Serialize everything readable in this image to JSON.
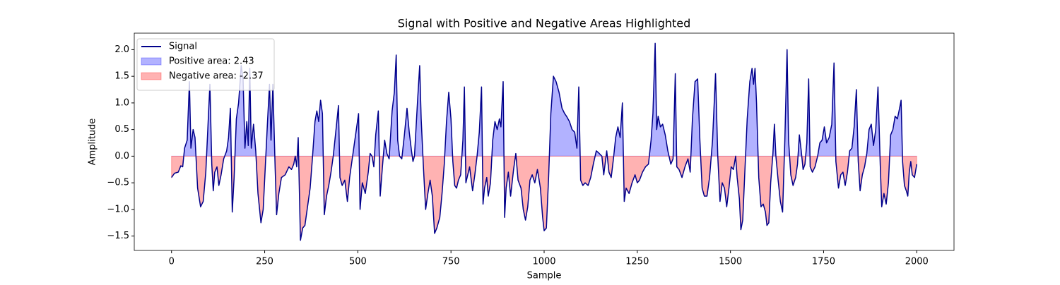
{
  "chart_data": {
    "type": "line",
    "title": "Signal with Positive and Negative Areas Highlighted",
    "x_label": "Sample",
    "y_label": "Amplitude",
    "x": [
      0,
      8,
      18,
      25,
      30,
      35,
      42,
      48,
      52,
      58,
      63,
      70,
      78,
      85,
      92,
      98,
      103,
      108,
      112,
      116,
      122,
      127,
      133,
      140,
      148,
      153,
      158,
      163,
      168,
      174,
      180,
      187,
      192,
      197,
      202,
      206,
      210,
      214,
      220,
      226,
      232,
      240,
      246,
      252,
      258,
      263,
      267,
      272,
      278,
      282,
      288,
      295,
      305,
      315,
      322,
      328,
      332,
      336,
      340,
      346,
      352,
      358,
      365,
      372,
      378,
      385,
      390,
      395,
      400,
      405,
      410,
      416,
      422,
      428,
      434,
      440,
      448,
      452,
      458,
      465,
      472,
      478,
      484,
      490,
      497,
      502,
      506,
      512,
      520,
      528,
      533,
      538,
      543,
      548,
      555,
      560,
      566,
      572,
      578,
      584,
      592,
      598,
      603,
      607,
      612,
      618,
      625,
      632,
      638,
      644,
      648,
      652,
      660,
      666,
      670,
      676,
      682,
      688,
      694,
      700,
      706,
      712,
      720,
      726,
      732,
      738,
      744,
      750,
      755,
      760,
      765,
      770,
      776,
      782,
      786,
      790,
      795,
      800,
      808,
      814,
      820,
      826,
      832,
      836,
      840,
      846,
      850,
      856,
      862,
      868,
      874,
      880,
      884,
      890,
      894,
      898,
      904,
      910,
      918,
      924,
      930,
      938,
      944,
      950,
      956,
      962,
      968,
      975,
      982,
      990,
      996,
      1000,
      1006,
      1012,
      1018,
      1025,
      1032,
      1040,
      1048,
      1055,
      1060,
      1068,
      1075,
      1082,
      1088,
      1093,
      1098,
      1104,
      1110,
      1118,
      1125,
      1132,
      1140,
      1148,
      1155,
      1160,
      1168,
      1174,
      1180,
      1186,
      1192,
      1198,
      1204,
      1210,
      1215,
      1220,
      1228,
      1236,
      1244,
      1250,
      1256,
      1264,
      1272,
      1280,
      1287,
      1292,
      1298,
      1302,
      1306,
      1312,
      1318,
      1325,
      1332,
      1340,
      1346,
      1352,
      1356,
      1362,
      1370,
      1378,
      1386,
      1392,
      1398,
      1405,
      1412,
      1418,
      1424,
      1430,
      1437,
      1444,
      1452,
      1460,
      1466,
      1472,
      1478,
      1484,
      1490,
      1496,
      1502,
      1508,
      1514,
      1518,
      1524,
      1528,
      1533,
      1538,
      1545,
      1552,
      1558,
      1562,
      1566,
      1570,
      1576,
      1582,
      1588,
      1594,
      1598,
      1603,
      1608,
      1614,
      1618,
      1622,
      1628,
      1634,
      1640,
      1646,
      1652,
      1656,
      1662,
      1668,
      1675,
      1680,
      1685,
      1690,
      1695,
      1700,
      1705,
      1710,
      1714,
      1720,
      1727,
      1734,
      1740,
      1746,
      1752,
      1758,
      1765,
      1772,
      1778,
      1783,
      1790,
      1796,
      1802,
      1808,
      1814,
      1820,
      1826,
      1832,
      1838,
      1843,
      1848,
      1854,
      1860,
      1866,
      1872,
      1878,
      1884,
      1890,
      1896,
      1902,
      1906,
      1912,
      1918,
      1924,
      1930,
      1936,
      1942,
      1948,
      1954,
      1958,
      1962,
      1967,
      1972,
      1976,
      1980,
      1984,
      1988,
      1994,
      2000
    ],
    "series": [
      {
        "name": "Signal",
        "color": "#00008b",
        "values": [
          -0.4,
          -0.32,
          -0.3,
          -0.18,
          -0.2,
          0.15,
          0.3,
          1.4,
          0.15,
          0.5,
          0.35,
          -0.6,
          -0.95,
          -0.85,
          -0.3,
          0.6,
          1.35,
          -0.15,
          -0.65,
          -0.3,
          -0.2,
          -0.55,
          -0.35,
          -0.05,
          0.1,
          0.35,
          0.9,
          -1.05,
          -0.4,
          0.7,
          1.0,
          1.7,
          1.45,
          0.15,
          0.65,
          0.2,
          1.65,
          0.15,
          0.6,
          0.1,
          -0.7,
          -1.25,
          -1.0,
          -0.15,
          0.7,
          1.35,
          0.3,
          1.35,
          -0.2,
          -1.1,
          -0.7,
          -0.4,
          -0.35,
          -0.2,
          -0.25,
          -0.15,
          0.0,
          -0.2,
          0.35,
          -1.58,
          -1.35,
          -1.3,
          -0.95,
          -0.6,
          -0.05,
          0.65,
          0.85,
          0.65,
          1.05,
          0.8,
          -1.1,
          -0.75,
          -0.55,
          -0.3,
          0.0,
          0.4,
          0.95,
          -0.4,
          -0.55,
          -0.45,
          -0.85,
          -0.4,
          -0.1,
          0.2,
          0.55,
          0.8,
          -1.0,
          -0.5,
          -0.7,
          -0.3,
          0.05,
          0.0,
          -0.2,
          0.4,
          0.85,
          -0.75,
          -0.2,
          0.3,
          0.05,
          -0.05,
          0.85,
          1.2,
          1.9,
          0.3,
          0.0,
          -0.05,
          0.4,
          0.9,
          0.45,
          0.1,
          -0.1,
          0.0,
          1.0,
          1.7,
          0.7,
          -0.2,
          -1.0,
          -0.7,
          -0.45,
          -0.75,
          -1.45,
          -1.35,
          -1.15,
          -0.7,
          -0.15,
          0.65,
          1.2,
          0.7,
          -0.1,
          -0.55,
          -0.6,
          -0.45,
          -0.35,
          0.3,
          1.3,
          -0.5,
          -0.35,
          -0.2,
          -0.65,
          -0.35,
          0.0,
          0.45,
          1.3,
          -0.9,
          -0.6,
          -0.4,
          -0.75,
          -0.5,
          0.3,
          0.65,
          0.5,
          0.7,
          0.55,
          1.4,
          -1.15,
          -0.6,
          -0.3,
          -0.75,
          -0.25,
          0.05,
          -0.45,
          -0.6,
          -1.0,
          -1.2,
          -0.95,
          -0.45,
          -0.35,
          -0.5,
          -0.25,
          -0.6,
          -1.15,
          -1.4,
          -1.35,
          -0.4,
          0.8,
          1.5,
          1.4,
          1.2,
          0.9,
          0.8,
          0.75,
          0.65,
          0.5,
          0.45,
          0.15,
          1.3,
          -0.45,
          -0.55,
          -0.5,
          -0.55,
          -0.4,
          -0.15,
          0.1,
          0.05,
          0.0,
          -0.35,
          0.1,
          -0.3,
          -0.4,
          -0.05,
          0.35,
          0.55,
          0.35,
          1.0,
          -0.85,
          -0.6,
          -0.7,
          -0.5,
          -0.35,
          -0.5,
          -0.45,
          -0.3,
          -0.2,
          -0.15,
          0.3,
          0.8,
          2.12,
          0.5,
          0.75,
          0.55,
          0.6,
          0.4,
          0.1,
          -0.15,
          -0.05,
          1.55,
          -0.2,
          -0.25,
          -0.4,
          -0.2,
          -0.05,
          -0.3,
          0.7,
          1.4,
          1.45,
          0.3,
          -0.6,
          -0.75,
          -0.75,
          -0.4,
          0.3,
          1.55,
          0.0,
          -0.85,
          -0.5,
          -0.6,
          -0.95,
          -0.6,
          -0.2,
          -0.25,
          0.0,
          -0.4,
          -0.8,
          -1.38,
          -1.2,
          -0.4,
          0.7,
          1.4,
          1.65,
          1.35,
          1.65,
          1.0,
          -0.4,
          -0.95,
          -0.9,
          -1.05,
          -1.3,
          -1.25,
          -0.5,
          0.05,
          0.6,
          0.0,
          -0.45,
          -0.85,
          -1.05,
          0.3,
          2.0,
          0.3,
          -0.35,
          -0.55,
          -0.4,
          -0.15,
          0.4,
          0.1,
          -0.25,
          -0.15,
          0.25,
          1.45,
          -0.2,
          -0.3,
          -0.2,
          0.0,
          0.25,
          0.3,
          0.55,
          0.25,
          0.35,
          0.6,
          1.75,
          -0.1,
          -0.6,
          -0.35,
          -0.3,
          -0.55,
          -0.3,
          0.1,
          0.15,
          0.55,
          1.25,
          -0.1,
          -0.65,
          -0.35,
          -0.2,
          0.05,
          0.5,
          0.6,
          0.2,
          0.5,
          1.3,
          -0.15,
          -0.95,
          -0.7,
          -0.9,
          -0.5,
          0.4,
          0.5,
          0.75,
          0.7,
          0.9,
          1.05,
          -0.1,
          -0.55,
          -0.65,
          -0.75,
          -0.3,
          -0.1,
          -0.35,
          -0.4,
          -0.15
        ]
      }
    ],
    "fills": [
      {
        "name": "Positive area: 2.43",
        "color": "#0000ff"
      },
      {
        "name": "Negative area: -2.37",
        "color": "#ff0000"
      }
    ],
    "xlim": [
      -100,
      2100
    ],
    "ylim": [
      -1.77,
      2.31
    ],
    "xticks": [
      0,
      250,
      500,
      750,
      1000,
      1250,
      1500,
      1750,
      2000
    ],
    "yticks": [
      {
        "value": -1.5,
        "label": "−1.5"
      },
      {
        "value": -1,
        "label": "−1.0"
      },
      {
        "value": -0.5,
        "label": "−0.5"
      },
      {
        "value": 0,
        "label": "0.0"
      },
      {
        "value": 0.5,
        "label": "0.5"
      },
      {
        "value": 1,
        "label": "1.0"
      },
      {
        "value": 1.5,
        "label": "1.5"
      },
      {
        "value": 2,
        "label": "2.0"
      }
    ],
    "legend_location": "upper left"
  }
}
